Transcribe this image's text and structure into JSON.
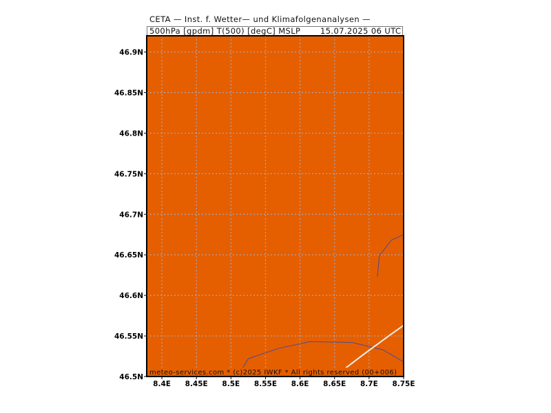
{
  "header": {
    "line1": "CETA — Inst. f. Wetter— und Klimafolgenanalysen —",
    "line2": "500hPa [gpdm] T(500) [degC] MSLP",
    "line2_date": "15.07.2025 06 UTC"
  },
  "map": {
    "background_color": "#E55F00",
    "grid_color": "#A8A8B8",
    "coast_color": "#4A4A9A",
    "contour_color": "#F0F0F0",
    "lon_ticks": [
      8.4,
      8.45,
      8.5,
      8.55,
      8.6,
      8.65,
      8.7,
      8.75
    ],
    "lon_labels": [
      "8.4E",
      "8.45E",
      "8.5E",
      "8.55E",
      "8.6E",
      "8.65E",
      "8.7E",
      "8.75E"
    ],
    "lat_ticks": [
      46.9,
      46.85,
      46.8,
      46.75,
      46.7,
      46.65,
      46.6,
      46.55,
      46.5
    ],
    "lat_labels": [
      "46.9N",
      "46.85N",
      "46.8N",
      "46.75N",
      "46.7N",
      "46.65N",
      "46.6N",
      "46.55N",
      "46.5N"
    ],
    "lon_range": [
      8.378,
      8.75
    ],
    "lat_range": [
      46.5,
      46.92
    ],
    "coastline_lake": [
      [
        8.51,
        46.5
      ],
      [
        8.525,
        46.522
      ],
      [
        8.57,
        46.535
      ],
      [
        8.615,
        46.543
      ],
      [
        8.675,
        46.542
      ],
      [
        8.72,
        46.533
      ],
      [
        8.75,
        46.518
      ]
    ],
    "coastline_north": [
      [
        8.712,
        46.623
      ],
      [
        8.715,
        46.649
      ],
      [
        8.732,
        46.668
      ],
      [
        8.75,
        46.675
      ]
    ],
    "contour_line": [
      [
        8.65,
        46.5
      ],
      [
        8.69,
        46.526
      ],
      [
        8.73,
        46.551
      ],
      [
        8.75,
        46.563
      ]
    ]
  },
  "footer": {
    "text": "meteo-services.com * (c)2025 IWKF * All rights reserved (00+006)"
  }
}
